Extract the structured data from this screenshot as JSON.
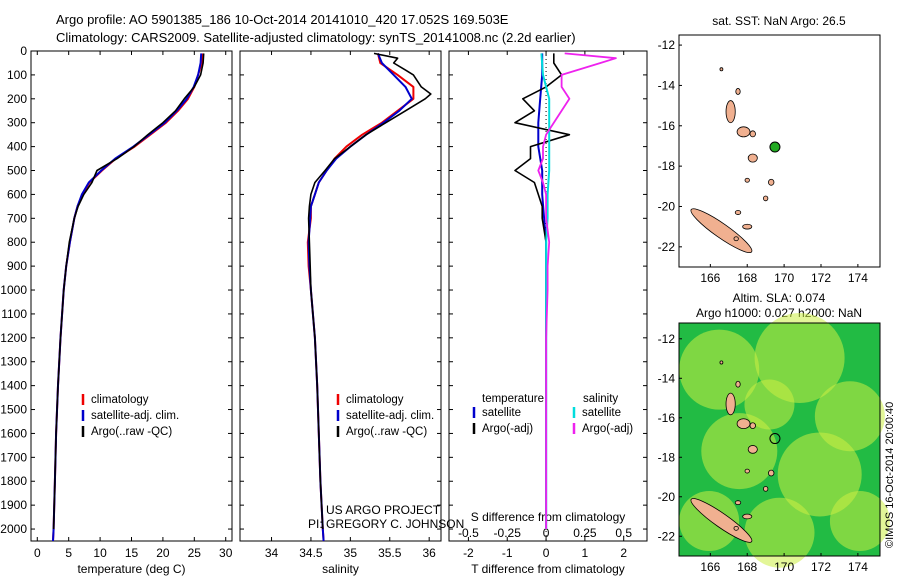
{
  "header": {
    "line1": "Argo profile: AO 5901385_186 10-Oct-2014 20141010_420 17.052S 169.503E",
    "line2": "Climatology: CARS2009. Satellite-adjusted climatology: synTS_20141008.nc (2.2d earlier)"
  },
  "credits": {
    "project": "US ARGO PROJECT",
    "pi": "PI: GREGORY C. JOHNSON",
    "side_label": "©IMOS 16-Oct-2014 20:00:40"
  },
  "colors": {
    "clim": "#ee0000",
    "sat": "#0000cc",
    "argo": "#000000",
    "sat_s": "#00dddd",
    "argo_s": "#ee22ee",
    "land": "#f0b090",
    "marker": "#22aa22",
    "map_bg_light": "#ccee44",
    "map_bg_dark": "#22bb44"
  },
  "chart_data": [
    {
      "type": "line",
      "panel": "temperature",
      "xlabel": "temperature (deg C)",
      "ylabel": "",
      "xlim": [
        -1,
        31
      ],
      "ylim": [
        2050,
        0
      ],
      "xticks": [
        0,
        5,
        10,
        15,
        20,
        25,
        30
      ],
      "yticks": [
        0,
        100,
        200,
        300,
        400,
        500,
        600,
        700,
        800,
        900,
        1000,
        1100,
        1200,
        1300,
        1400,
        1500,
        1600,
        1700,
        1800,
        1900,
        2000
      ],
      "legend": [
        "climatology",
        "satellite-adj. clim.",
        "Argo(..raw -QC)"
      ],
      "series": [
        {
          "name": "climatology",
          "depth": [
            10,
            50,
            100,
            150,
            200,
            250,
            300,
            350,
            400,
            450,
            500,
            550,
            600,
            650,
            700,
            800,
            900,
            1000,
            1200,
            1400,
            1600,
            1800,
            2000,
            2050
          ],
          "values": [
            26.3,
            26.2,
            25.6,
            25.0,
            24.0,
            22.4,
            20.5,
            18.0,
            15.5,
            12.5,
            10.3,
            8.3,
            7.2,
            6.4,
            5.9,
            5.2,
            4.6,
            4.2,
            3.7,
            3.3,
            3.0,
            2.8,
            2.6,
            2.5
          ]
        },
        {
          "name": "satellite-adj. clim.",
          "depth": [
            10,
            50,
            100,
            150,
            200,
            250,
            300,
            350,
            400,
            450,
            500,
            550,
            600,
            650,
            700,
            800,
            900,
            1000,
            1200,
            1400,
            1600,
            1800,
            2000,
            2050
          ],
          "values": [
            26.1,
            26.0,
            25.6,
            24.9,
            23.8,
            22.2,
            20.3,
            17.8,
            15.3,
            12.4,
            10.2,
            8.2,
            7.1,
            6.4,
            5.9,
            5.2,
            4.6,
            4.2,
            3.7,
            3.3,
            3.0,
            2.8,
            2.6,
            2.5
          ]
        },
        {
          "name": "Argo(..raw -QC)",
          "depth": [
            10,
            50,
            100,
            150,
            200,
            250,
            300,
            350,
            400,
            450,
            500,
            550,
            600,
            650,
            700,
            800,
            900,
            1000,
            1200,
            1400,
            1600,
            1800,
            2000
          ],
          "values": [
            26.5,
            26.4,
            26.0,
            25.0,
            23.4,
            22.0,
            20.0,
            17.6,
            15.4,
            12.7,
            9.5,
            8.7,
            7.4,
            6.5,
            5.9,
            5.1,
            4.6,
            4.2,
            3.7,
            3.3,
            3.0,
            2.8,
            2.6
          ]
        }
      ]
    },
    {
      "type": "line",
      "panel": "salinity",
      "xlabel": "salinity",
      "ylabel": "",
      "xlim": [
        33.6,
        36.15
      ],
      "ylim": [
        2050,
        0
      ],
      "xticks": [
        34,
        34.5,
        35,
        35.5,
        36
      ],
      "legend": [
        "climatology",
        "satellite-adj. clim.",
        "Argo(..raw -QC)"
      ],
      "series": [
        {
          "name": "climatology",
          "depth": [
            10,
            50,
            100,
            150,
            200,
            250,
            300,
            350,
            400,
            450,
            500,
            550,
            600,
            650,
            700,
            800,
            900,
            1000,
            1200,
            1400,
            1600,
            1800,
            2000,
            2050
          ],
          "values": [
            35.35,
            35.38,
            35.6,
            35.8,
            35.8,
            35.6,
            35.4,
            35.15,
            34.95,
            34.8,
            34.7,
            34.6,
            34.55,
            34.5,
            34.5,
            34.46,
            34.47,
            34.5,
            34.55,
            34.58,
            34.6,
            34.62,
            34.65,
            34.66
          ]
        },
        {
          "name": "satellite-adj. clim.",
          "depth": [
            10,
            50,
            100,
            150,
            200,
            250,
            300,
            350,
            400,
            450,
            500,
            550,
            600,
            650,
            700,
            800,
            900,
            1000,
            1200,
            1400,
            1600,
            1800,
            2000,
            2050
          ],
          "values": [
            35.35,
            35.4,
            35.55,
            35.7,
            35.78,
            35.62,
            35.42,
            35.2,
            35.0,
            34.82,
            34.7,
            34.6,
            34.55,
            34.5,
            34.49,
            34.47,
            34.48,
            34.5,
            34.55,
            34.58,
            34.6,
            34.62,
            34.65,
            34.66
          ]
        },
        {
          "name": "Argo(..raw -QC)",
          "depth": [
            10,
            30,
            50,
            80,
            100,
            150,
            180,
            200,
            250,
            300,
            350,
            400,
            450,
            500,
            550,
            600,
            650,
            700,
            800,
            900,
            1000,
            1200,
            1400,
            1600,
            1800,
            2000
          ],
          "values": [
            35.3,
            35.6,
            35.55,
            35.7,
            35.8,
            35.9,
            36.02,
            35.95,
            35.7,
            35.45,
            35.2,
            35.0,
            34.8,
            34.68,
            34.55,
            34.5,
            34.48,
            34.47,
            34.48,
            34.49,
            34.5,
            34.55,
            34.58,
            34.6,
            34.62,
            34.65
          ]
        }
      ]
    },
    {
      "type": "line",
      "panel": "difference",
      "xlabel": "T difference from climatology",
      "xlabel2": "S difference from climatology",
      "xlim": [
        -2.5,
        2.6
      ],
      "ylim": [
        2050,
        0
      ],
      "xticks": [
        -2,
        -1,
        0,
        1,
        2
      ],
      "xticks_s": [
        "-0.5",
        "-0.25",
        "0",
        "0.25",
        "0.5"
      ],
      "xticks_s_values": [
        -0.5,
        -0.25,
        0,
        0.25,
        0.5
      ],
      "legend_t_title": "temperature",
      "legend_s_title": "salinity",
      "legend_t": [
        "satellite",
        "Argo(-adj)"
      ],
      "legend_s": [
        "satellite",
        "Argo(-adj)"
      ],
      "series": [
        {
          "name": "satellite",
          "kind": "T",
          "depth": [
            10,
            100,
            200,
            300,
            400,
            500,
            600,
            700,
            800,
            1000,
            1200,
            1500,
            2000
          ],
          "values": [
            -0.1,
            -0.1,
            -0.15,
            -0.2,
            -0.2,
            -0.1,
            -0.1,
            -0.05,
            0,
            0,
            0,
            0,
            0
          ]
        },
        {
          "name": "Argo(-adj)",
          "kind": "T",
          "depth": [
            10,
            50,
            100,
            150,
            200,
            250,
            300,
            350,
            400,
            450,
            500,
            550,
            600,
            650,
            700,
            800,
            900,
            1000,
            1200,
            1400,
            1600,
            1800,
            2000
          ],
          "values": [
            0.2,
            0.2,
            0.4,
            0,
            -0.6,
            -0.3,
            -0.8,
            0.6,
            -0.4,
            -0.4,
            -0.8,
            -0.3,
            -0.2,
            -0.1,
            -0.1,
            0,
            0,
            0,
            0,
            0,
            0,
            0,
            0
          ]
        },
        {
          "name": "satellite",
          "kind": "S",
          "depth": [
            10,
            100,
            200,
            300,
            400,
            500,
            600,
            700,
            800,
            1000,
            1200,
            1500,
            2000
          ],
          "values": [
            -0.03,
            -0.02,
            0.02,
            0.02,
            0.02,
            0.02,
            0.01,
            0.01,
            0,
            0,
            0,
            0,
            0
          ]
        },
        {
          "name": "Argo(-adj)",
          "kind": "S",
          "depth": [
            10,
            30,
            50,
            80,
            100,
            150,
            200,
            250,
            300,
            350,
            400,
            450,
            500,
            550,
            600,
            650,
            700,
            800,
            900,
            1000,
            1200,
            1400,
            1600,
            1800,
            2000
          ],
          "values": [
            0.12,
            0.45,
            0.35,
            0.2,
            0.1,
            0.1,
            0.15,
            0.1,
            0.05,
            0.0,
            -0.02,
            -0.02,
            -0.05,
            -0.02,
            0.0,
            0.0,
            0.0,
            0.02,
            0.01,
            0.01,
            0.0,
            0.0,
            0.0,
            0.0,
            0.0
          ]
        }
      ]
    },
    {
      "type": "map",
      "panel": "sst",
      "title": "sat. SST: NaN Argo: 26.5",
      "xlim": [
        164.3,
        175.2
      ],
      "ylim": [
        -23,
        -11.5
      ],
      "xticks": [
        166,
        168,
        170,
        172,
        174
      ],
      "yticks": [
        -12,
        -14,
        -16,
        -18,
        -20,
        -22
      ],
      "profile_point": {
        "lon": 169.503,
        "lat": -17.052
      }
    },
    {
      "type": "map",
      "panel": "sla",
      "title1": "Altim. SLA: 0.074",
      "title2": "Argo h1000: 0.027 h2000: NaN",
      "xlim": [
        164.3,
        175.2
      ],
      "ylim": [
        -23,
        -11.2
      ],
      "xticks": [
        166,
        168,
        170,
        172,
        174
      ],
      "yticks": [
        -12,
        -14,
        -16,
        -18,
        -20,
        -22
      ],
      "profile_point": {
        "lon": 169.503,
        "lat": -17.052
      }
    }
  ]
}
